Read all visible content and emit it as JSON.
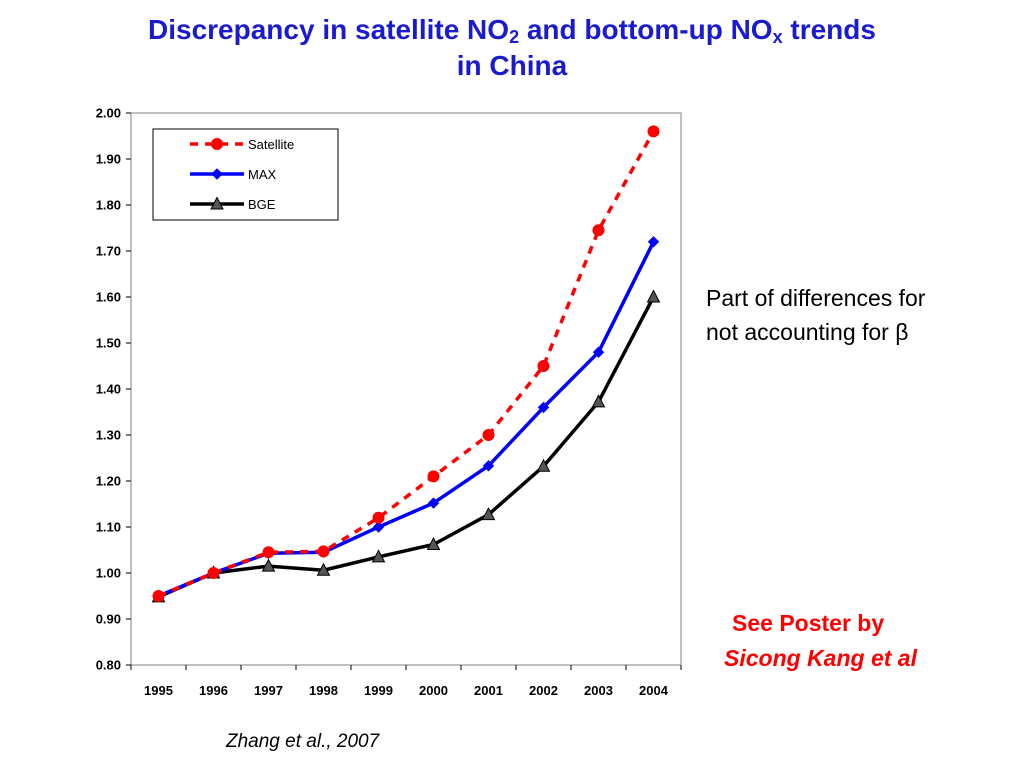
{
  "slide": {
    "title_part1": "Discrepancy in satellite NO",
    "title_sub1": "2",
    "title_part2": " and bottom-up NO",
    "title_sub2": "x",
    "title_part3": " trends",
    "title_line2": "in China",
    "note_line1": "Part of differences for",
    "note_line2": "not accounting for β",
    "poster_line1": "See Poster by",
    "poster_line2": "Sicong Kang et al",
    "citation": "Zhang et al., 2007"
  },
  "chart_data": {
    "type": "line",
    "categories": [
      "1995",
      "1996",
      "1997",
      "1998",
      "1999",
      "2000",
      "2001",
      "2002",
      "2003",
      "2004"
    ],
    "ylim": [
      0.8,
      2.0
    ],
    "yticks": [
      "0.80",
      "0.90",
      "1.00",
      "1.10",
      "1.20",
      "1.30",
      "1.40",
      "1.50",
      "1.60",
      "1.70",
      "1.80",
      "1.90",
      "2.00"
    ],
    "grid": false,
    "legend_position": "top-left",
    "series": [
      {
        "name": "Satellite",
        "values": [
          0.95,
          1.0,
          1.045,
          1.047,
          1.12,
          1.21,
          1.3,
          1.45,
          1.745,
          1.96
        ],
        "color": "#ff0000",
        "line": "dashed",
        "marker": "circle"
      },
      {
        "name": "MAX",
        "values": [
          0.95,
          1.0,
          1.043,
          1.045,
          1.1,
          1.152,
          1.233,
          1.36,
          1.48,
          1.72
        ],
        "color": "#0000ff",
        "line": "solid",
        "marker": "diamond"
      },
      {
        "name": "BGE",
        "values": [
          0.948,
          1.0,
          1.015,
          1.006,
          1.035,
          1.062,
          1.127,
          1.232,
          1.372,
          1.6
        ],
        "color": "#000000",
        "line": "solid",
        "marker": "triangle"
      }
    ]
  }
}
